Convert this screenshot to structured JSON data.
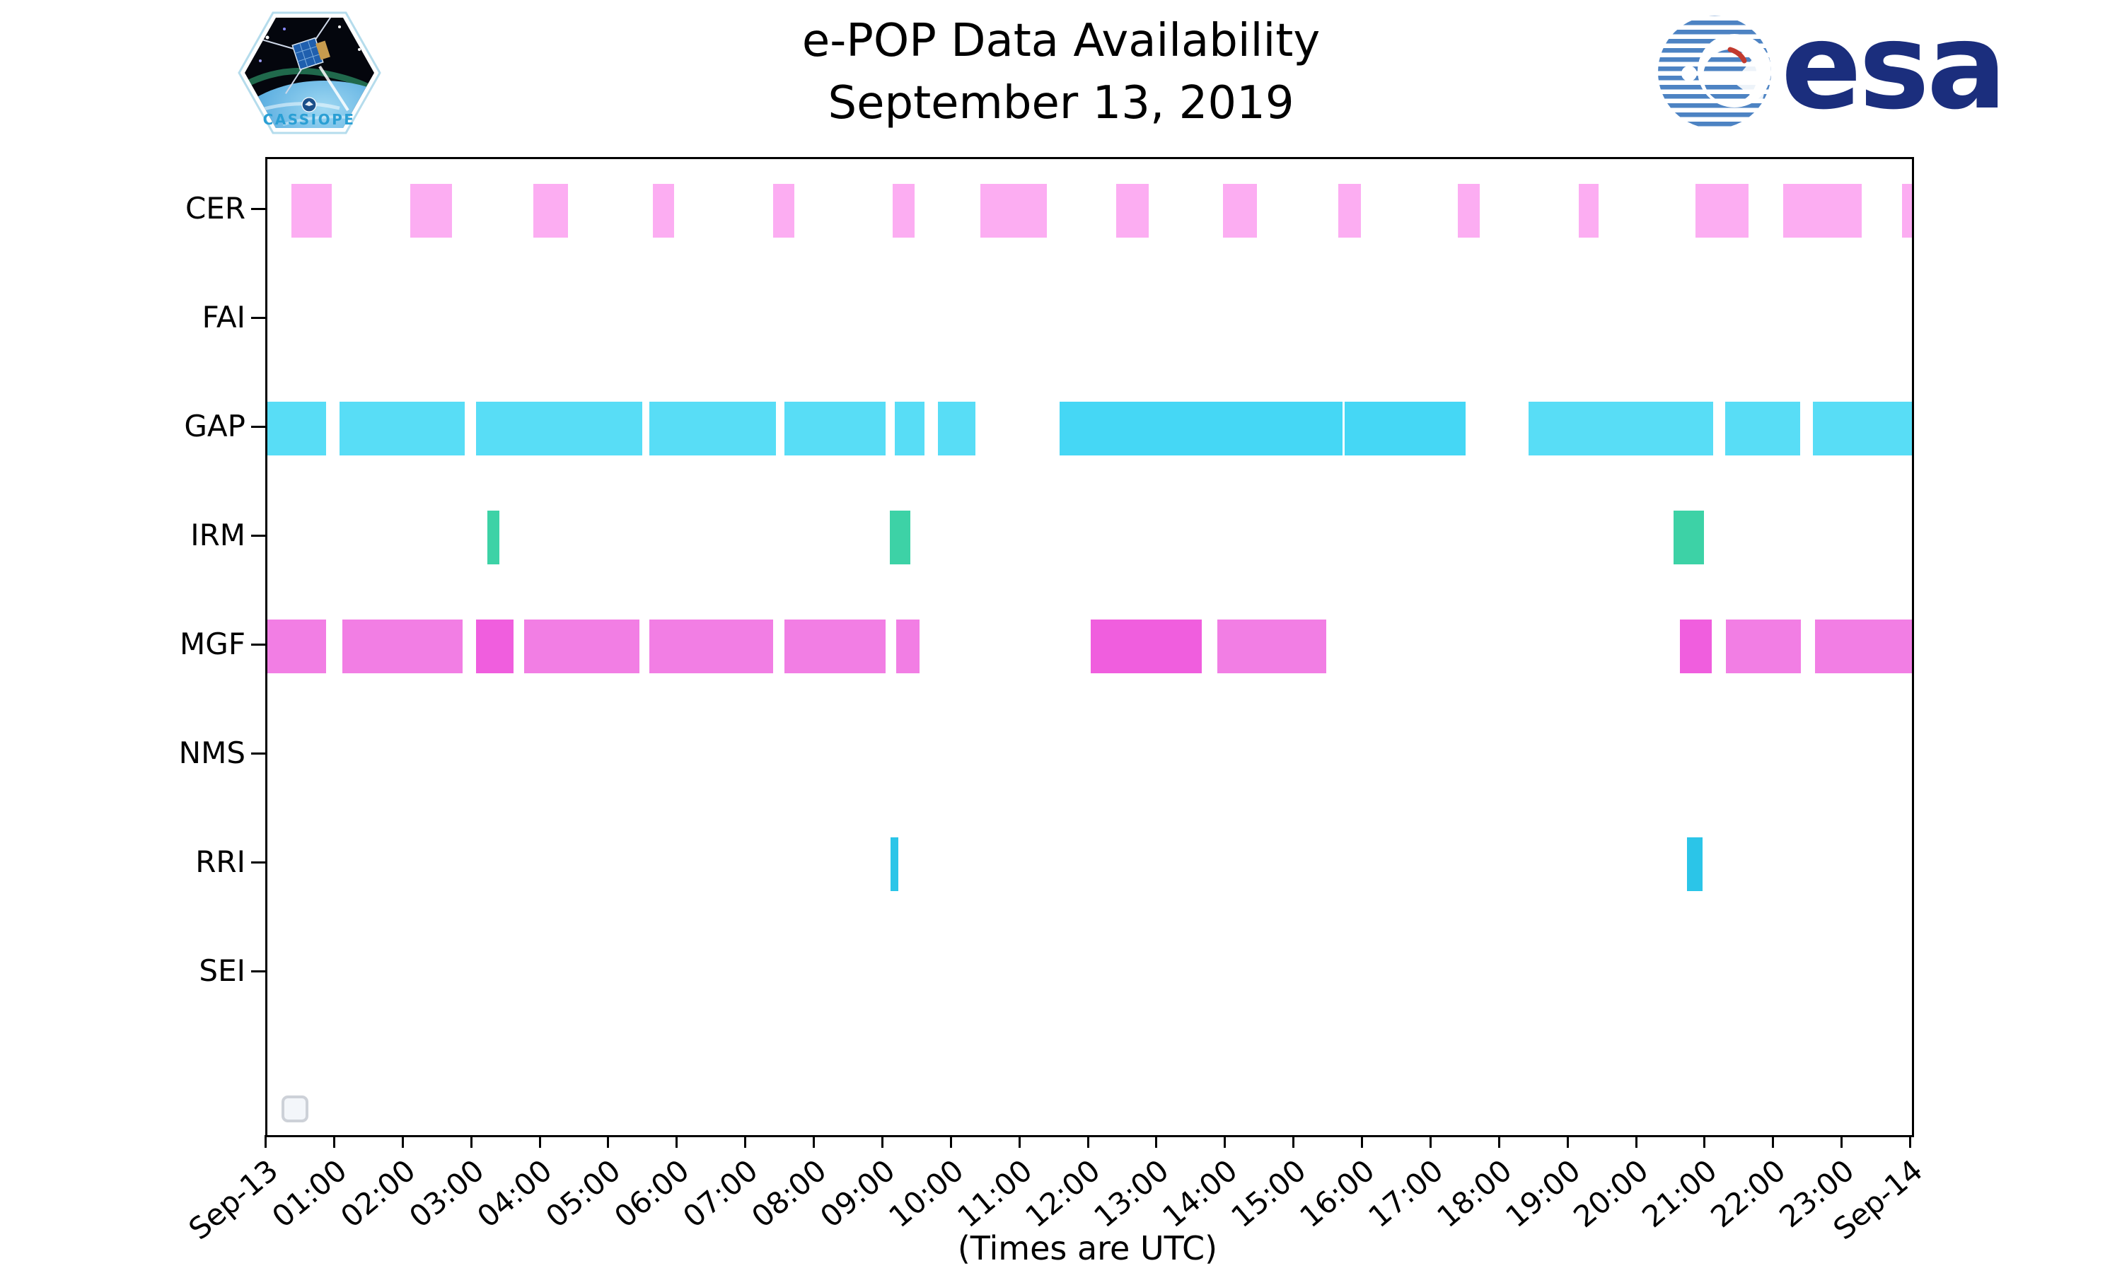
{
  "header": {
    "title_line1": "e-POP Data Availability",
    "title_line2": "September 13, 2019",
    "patch_text": "CASSIOPE",
    "esa_text": "esa"
  },
  "caption": "(Times are UTC)",
  "colors": {
    "cer_pink": "#fcadf2",
    "gap_cyan": "#58ddf6",
    "gap_cyan_dark": "#45d7f5",
    "irm_green": "#3dd2a6",
    "mgf_magenta": "#f27ee4",
    "mgf_magenta_dark": "#f05ede",
    "rri_blue": "#2bc5e8",
    "esa_navy": "#1b2e7d",
    "axis": "#000000"
  },
  "chart_data": {
    "type": "bar",
    "subtype": "broken-bar availability timeline (gantt)",
    "title": "e-POP Data Availability September 13, 2019",
    "xlabel": "(Times are UTC)",
    "xlim_hours": [
      0,
      24
    ],
    "grid": false,
    "legend": "empty legend box bottom-left",
    "rows": [
      "CER",
      "FAI",
      "GAP",
      "IRM",
      "MGF",
      "NMS",
      "RRI",
      "SEI"
    ],
    "x_ticks": [
      {
        "label": "Sep-13",
        "hour": 0
      },
      {
        "label": "01:00",
        "hour": 1
      },
      {
        "label": "02:00",
        "hour": 2
      },
      {
        "label": "03:00",
        "hour": 3
      },
      {
        "label": "04:00",
        "hour": 4
      },
      {
        "label": "05:00",
        "hour": 5
      },
      {
        "label": "06:00",
        "hour": 6
      },
      {
        "label": "07:00",
        "hour": 7
      },
      {
        "label": "08:00",
        "hour": 8
      },
      {
        "label": "09:00",
        "hour": 9
      },
      {
        "label": "10:00",
        "hour": 10
      },
      {
        "label": "11:00",
        "hour": 11
      },
      {
        "label": "12:00",
        "hour": 12
      },
      {
        "label": "13:00",
        "hour": 13
      },
      {
        "label": "14:00",
        "hour": 14
      },
      {
        "label": "15:00",
        "hour": 15
      },
      {
        "label": "16:00",
        "hour": 16
      },
      {
        "label": "17:00",
        "hour": 17
      },
      {
        "label": "18:00",
        "hour": 18
      },
      {
        "label": "19:00",
        "hour": 19
      },
      {
        "label": "20:00",
        "hour": 20
      },
      {
        "label": "21:00",
        "hour": 21
      },
      {
        "label": "22:00",
        "hour": 22
      },
      {
        "label": "23:00",
        "hour": 23
      },
      {
        "label": "Sep-14",
        "hour": 24
      }
    ],
    "series": [
      {
        "name": "CER",
        "colors": {
          "base": "#fcadf2"
        },
        "intervals": [
          [
            0.35,
            0.94
          ],
          [
            2.08,
            2.69
          ],
          [
            3.88,
            4.39
          ],
          [
            5.63,
            5.94
          ],
          [
            7.38,
            7.69
          ],
          [
            9.12,
            9.45
          ],
          [
            10.4,
            11.38
          ],
          [
            12.39,
            12.86
          ],
          [
            13.95,
            14.44
          ],
          [
            15.63,
            15.96
          ],
          [
            17.37,
            17.69
          ],
          [
            19.14,
            19.43
          ],
          [
            20.84,
            21.62
          ],
          [
            22.12,
            23.27
          ],
          [
            23.86,
            24.0
          ]
        ]
      },
      {
        "name": "FAI",
        "colors": {
          "base": "#aaaaaa"
        },
        "intervals": []
      },
      {
        "name": "GAP",
        "colors": {
          "base": "#58ddf6",
          "dark": "#45d7f5"
        },
        "intervals": [
          [
            0.0,
            0.86
          ],
          [
            1.05,
            2.88
          ],
          [
            3.05,
            5.47
          ],
          [
            5.57,
            7.42
          ],
          [
            7.55,
            9.02
          ],
          [
            9.16,
            9.59
          ],
          [
            9.79,
            10.33
          ],
          [
            11.56,
            15.69,
            "dark"
          ],
          [
            15.72,
            17.49,
            "dark"
          ],
          [
            18.4,
            21.1
          ],
          [
            21.27,
            22.37
          ],
          [
            22.55,
            24.0
          ]
        ]
      },
      {
        "name": "IRM",
        "colors": {
          "base": "#3dd2a6"
        },
        "intervals": [
          [
            3.21,
            3.39
          ],
          [
            9.08,
            9.38
          ],
          [
            20.52,
            20.96
          ]
        ]
      },
      {
        "name": "MGF",
        "colors": {
          "base": "#f27ee4",
          "dark": "#f05ede"
        },
        "intervals": [
          [
            0.0,
            0.86
          ],
          [
            1.09,
            2.85
          ],
          [
            3.05,
            3.59,
            "dark"
          ],
          [
            3.75,
            5.43
          ],
          [
            5.57,
            7.38
          ],
          [
            7.55,
            9.02
          ],
          [
            9.18,
            9.52
          ],
          [
            12.02,
            13.64,
            "dark"
          ],
          [
            13.86,
            15.45
          ],
          [
            20.61,
            21.08,
            "dark"
          ],
          [
            21.28,
            22.38
          ],
          [
            22.59,
            24.0
          ]
        ]
      },
      {
        "name": "NMS",
        "colors": {
          "base": "#aaaaaa"
        },
        "intervals": []
      },
      {
        "name": "RRI",
        "colors": {
          "base": "#2bc5e8"
        },
        "intervals": [
          [
            9.09,
            9.21
          ],
          [
            20.72,
            20.94
          ]
        ]
      },
      {
        "name": "SEI",
        "colors": {
          "base": "#aaaaaa"
        },
        "intervals": []
      }
    ]
  },
  "layout_note_units": "interval values are decimal hours UTC on Sep 13 2019"
}
